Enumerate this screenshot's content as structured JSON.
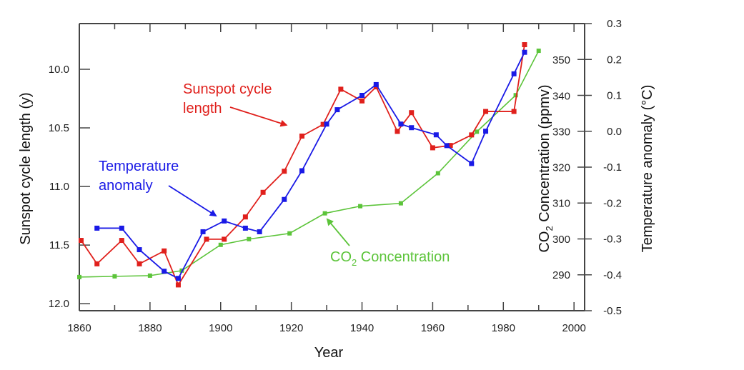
{
  "chart_data": {
    "type": "line",
    "title": "",
    "xlabel": "Year",
    "ylabel_left": "Sunspot cycle length (y)",
    "ylabel_right_inner": "CO₂ Concentration (ppmv)",
    "ylabel_right_inner_parts": {
      "pre": "CO",
      "sub": "2",
      "post": " Concentration (ppmv)"
    },
    "ylabel_right_outer": "Temperature anomaly (°C)",
    "xlim": [
      1860,
      2003
    ],
    "ylim_left": [
      12.06,
      9.61
    ],
    "ylim_left_inverted": true,
    "ylim_co2": [
      280,
      360.2
    ],
    "ylim_temp": [
      -0.5,
      0.3
    ],
    "grid": false,
    "x_ticks": [
      1860,
      1880,
      1900,
      1920,
      1940,
      1960,
      1980,
      2000
    ],
    "x_minor_ticks": [
      1870,
      1890,
      1910,
      1930,
      1950,
      1970,
      1990
    ],
    "left_ticks": [
      10.0,
      10.5,
      11.0,
      11.5,
      12.0
    ],
    "left_tick_labels": [
      "10.0",
      "10.5",
      "11.0",
      "11.5",
      "12.0"
    ],
    "co2_ticks": [
      290,
      300,
      310,
      320,
      330,
      340,
      350
    ],
    "co2_tick_labels": [
      "290",
      "300",
      "310",
      "320",
      "330",
      "340",
      "350"
    ],
    "temp_ticks": [
      -0.5,
      -0.4,
      -0.3,
      -0.2,
      -0.1,
      0.0,
      0.1,
      0.2,
      0.3
    ],
    "temp_tick_labels": [
      "-0.5",
      "-0.4",
      "-0.3",
      "-0.2",
      "-0.1",
      "0.0",
      "0.1",
      "0.2",
      "0.3"
    ],
    "series": [
      {
        "name": "Sunspot cycle length",
        "axis": "left",
        "color": "#e0201c",
        "x": [
          1860.5,
          1865,
          1872,
          1877,
          1884,
          1888,
          1896,
          1901,
          1907,
          1912,
          1918,
          1923,
          1929,
          1934,
          1940,
          1944,
          1950,
          1954,
          1960,
          1965,
          1971,
          1975,
          1983,
          1986
        ],
        "values": [
          11.46,
          11.66,
          11.46,
          11.66,
          11.55,
          11.84,
          11.45,
          11.45,
          11.26,
          11.05,
          10.87,
          10.57,
          10.47,
          10.17,
          10.27,
          10.15,
          10.53,
          10.37,
          10.67,
          10.65,
          10.56,
          10.36,
          10.36,
          9.79
        ]
      },
      {
        "name": "Temperature anomaly",
        "axis": "temp",
        "color": "#1a1ae6",
        "x": [
          1865,
          1872,
          1877,
          1884,
          1888,
          1895,
          1901,
          1907,
          1911,
          1918,
          1923,
          1930,
          1933,
          1940,
          1944,
          1951,
          1954,
          1961,
          1964,
          1971,
          1975,
          1983,
          1986
        ],
        "values": [
          -0.27,
          -0.27,
          -0.33,
          -0.39,
          -0.41,
          -0.28,
          -0.25,
          -0.27,
          -0.28,
          -0.19,
          -0.11,
          0.02,
          0.06,
          0.1,
          0.13,
          0.02,
          0.01,
          -0.01,
          -0.04,
          -0.09,
          0.0,
          0.16,
          0.22
        ]
      },
      {
        "name": "CO₂ Concentration",
        "axis": "co2",
        "color": "#5cc43a",
        "x": [
          1860,
          1870,
          1880,
          1889,
          1900,
          1908,
          1919.5,
          1929.5,
          1939.5,
          1951,
          1961.5,
          1972.5,
          1983.5,
          1990
        ],
        "values": [
          289.4,
          289.6,
          289.8,
          291.2,
          298.4,
          300.0,
          301.6,
          307.2,
          309.2,
          310.0,
          318.4,
          330.0,
          340.2,
          352.6
        ]
      }
    ],
    "annotations": [
      {
        "id": "sunspot",
        "lines": [
          "Sunspot cycle",
          "length"
        ],
        "color": "#e0201c",
        "arrow_to": {
          "x": 1921,
          "y_left": 10.5
        }
      },
      {
        "id": "temp",
        "lines": [
          "Temperature",
          "anomaly"
        ],
        "color": "#1a1ae6",
        "arrow_to": {
          "x": 1898,
          "y_left": 11.24
        }
      },
      {
        "id": "co2",
        "pre": "CO",
        "sub": "2",
        "post": " Concentration",
        "color": "#5cc43a",
        "arrow_to": {
          "x": 1930.5,
          "y_left": 11.33
        }
      }
    ]
  }
}
